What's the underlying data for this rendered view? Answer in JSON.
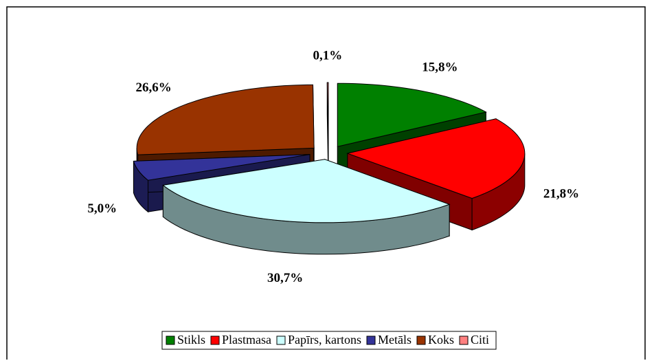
{
  "chart_data": {
    "type": "pie3d",
    "categories": [
      "Stikls",
      "Plastmasa",
      "Papīrs, kartons",
      "Metāls",
      "Koks",
      "Citi"
    ],
    "values": [
      15.8,
      21.8,
      30.7,
      5.0,
      26.6,
      0.1
    ],
    "value_labels": [
      "15,8%",
      "21,8%",
      "30,7%",
      "5,0%",
      "26,6%",
      "0,1%"
    ],
    "colors": [
      "#008000",
      "#ff0000",
      "#ccffff",
      "#333399",
      "#993300",
      "#ff8080"
    ],
    "legend": "bottom"
  }
}
